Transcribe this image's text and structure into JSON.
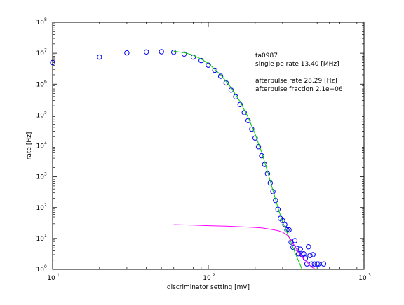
{
  "chart_data": {
    "type": "scatter",
    "xscale": "log",
    "yscale": "log",
    "xlim": [
      10,
      1000
    ],
    "ylim": [
      1,
      100000000
    ],
    "xlabel": "discriminator setting [mV]",
    "ylabel": "rate [Hz]",
    "x_ticks": [
      {
        "value": 10,
        "base": "10",
        "exp": "1"
      },
      {
        "value": 100,
        "base": "10",
        "exp": "2"
      },
      {
        "value": 1000,
        "base": "10",
        "exp": "3"
      }
    ],
    "y_ticks": [
      {
        "value": 1,
        "base": "10",
        "exp": "0"
      },
      {
        "value": 10,
        "base": "10",
        "exp": "1"
      },
      {
        "value": 100,
        "base": "10",
        "exp": "2"
      },
      {
        "value": 1000,
        "base": "10",
        "exp": "3"
      },
      {
        "value": 10000,
        "base": "10",
        "exp": "4"
      },
      {
        "value": 100000,
        "base": "10",
        "exp": "5"
      },
      {
        "value": 1000000,
        "base": "10",
        "exp": "6"
      },
      {
        "value": 10000000,
        "base": "10",
        "exp": "7"
      },
      {
        "value": 100000000,
        "base": "10",
        "exp": "8"
      }
    ],
    "annotations": [
      {
        "text": "ta0987",
        "line": 0
      },
      {
        "text": "single pe rate 13.40 [MHz]",
        "line": 1
      },
      {
        "text": "afterpulse rate 28.29 [Hz]",
        "line": 3
      },
      {
        "text": "afterpulse fraction 2.1e−06",
        "line": 4
      }
    ],
    "series": [
      {
        "kind": "markers",
        "color": "#0000ff",
        "points": [
          [
            10,
            5000000
          ],
          [
            20,
            7500000
          ],
          [
            30,
            10300000
          ],
          [
            40,
            11000000
          ],
          [
            50,
            11200000
          ],
          [
            60,
            10800000
          ],
          [
            70,
            9400000
          ],
          [
            80,
            7500000
          ],
          [
            90,
            5800000
          ],
          [
            100,
            4100000
          ],
          [
            110,
            2800000
          ],
          [
            120,
            1800000
          ],
          [
            130,
            1100000
          ],
          [
            140,
            640000
          ],
          [
            150,
            390000
          ],
          [
            160,
            220000
          ],
          [
            170,
            120000
          ],
          [
            180,
            66000
          ],
          [
            190,
            35000
          ],
          [
            200,
            18000
          ],
          [
            210,
            9400
          ],
          [
            220,
            4800
          ],
          [
            230,
            2500
          ],
          [
            240,
            1250
          ],
          [
            250,
            630
          ],
          [
            260,
            330
          ],
          [
            270,
            170
          ],
          [
            280,
            88
          ],
          [
            290,
            45
          ],
          [
            300,
            38
          ],
          [
            310,
            28
          ],
          [
            320,
            19
          ],
          [
            330,
            19
          ],
          [
            340,
            7.6
          ],
          [
            350,
            5.2
          ],
          [
            360,
            8.5
          ],
          [
            370,
            4.8
          ],
          [
            380,
            3.2
          ],
          [
            390,
            4.5
          ],
          [
            400,
            3.0
          ],
          [
            410,
            3.2
          ],
          [
            420,
            2.3
          ],
          [
            430,
            1.5
          ],
          [
            440,
            5.4
          ],
          [
            450,
            2.8
          ],
          [
            460,
            1.5
          ],
          [
            470,
            3.0
          ],
          [
            480,
            1.5
          ],
          [
            500,
            1.5
          ],
          [
            510,
            1.5
          ],
          [
            550,
            1.5
          ]
        ]
      },
      {
        "kind": "line",
        "color": "#00cc00",
        "points": [
          [
            60,
            11500000
          ],
          [
            70,
            10500000
          ],
          [
            80,
            8600000
          ],
          [
            90,
            6500000
          ],
          [
            100,
            4700000
          ],
          [
            120,
            2000000
          ],
          [
            140,
            780000
          ],
          [
            160,
            270000
          ],
          [
            180,
            85000
          ],
          [
            200,
            24000
          ],
          [
            220,
            6200
          ],
          [
            240,
            1500
          ],
          [
            260,
            360
          ],
          [
            280,
            100
          ],
          [
            300,
            34
          ],
          [
            330,
            11
          ],
          [
            360,
            3.5
          ],
          [
            400,
            1.0
          ]
        ]
      },
      {
        "kind": "line",
        "color": "#ff00ff",
        "points": [
          [
            60,
            28
          ],
          [
            80,
            27
          ],
          [
            100,
            26
          ],
          [
            130,
            25
          ],
          [
            160,
            24
          ],
          [
            190,
            23
          ],
          [
            220,
            22
          ],
          [
            250,
            20
          ],
          [
            280,
            18
          ],
          [
            300,
            16
          ],
          [
            320,
            13
          ],
          [
            335,
            10
          ],
          [
            350,
            7
          ],
          [
            365,
            5
          ],
          [
            380,
            3.5
          ],
          [
            400,
            2.5
          ],
          [
            430,
            1.7
          ],
          [
            460,
            1.2
          ],
          [
            490,
            1.0
          ]
        ]
      }
    ]
  }
}
